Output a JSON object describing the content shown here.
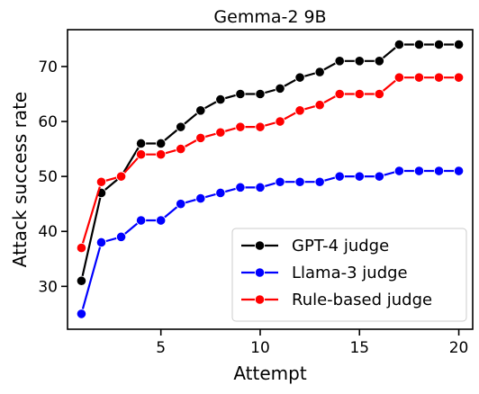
{
  "chart_data": {
    "type": "line",
    "title": "Gemma-2 9B",
    "xlabel": "Attempt",
    "ylabel": "Attack success rate",
    "xlim": [
      0.3,
      20.7
    ],
    "ylim": [
      22.2,
      76.7
    ],
    "xticks": [
      5,
      10,
      15,
      20
    ],
    "yticks": [
      30,
      40,
      50,
      60,
      70
    ],
    "grid": false,
    "legend_position": "lower-right",
    "x": [
      1,
      2,
      3,
      4,
      5,
      6,
      7,
      8,
      9,
      10,
      11,
      12,
      13,
      14,
      15,
      16,
      17,
      18,
      19,
      20
    ],
    "series": [
      {
        "name": "GPT-4 judge",
        "color": "#000000",
        "values": [
          31,
          47,
          50,
          56,
          56,
          59,
          62,
          64,
          65,
          65,
          66,
          68,
          69,
          71,
          71,
          71,
          74,
          74,
          74,
          74
        ]
      },
      {
        "name": "Llama-3 judge",
        "color": "#0000ff",
        "values": [
          25,
          38,
          39,
          42,
          42,
          45,
          46,
          47,
          48,
          48,
          49,
          49,
          49,
          50,
          50,
          50,
          51,
          51,
          51,
          51
        ]
      },
      {
        "name": "Rule-based judge",
        "color": "#ff0000",
        "values": [
          37,
          49,
          50,
          54,
          54,
          55,
          57,
          58,
          59,
          59,
          60,
          62,
          63,
          65,
          65,
          65,
          68,
          68,
          68,
          68
        ]
      }
    ]
  }
}
